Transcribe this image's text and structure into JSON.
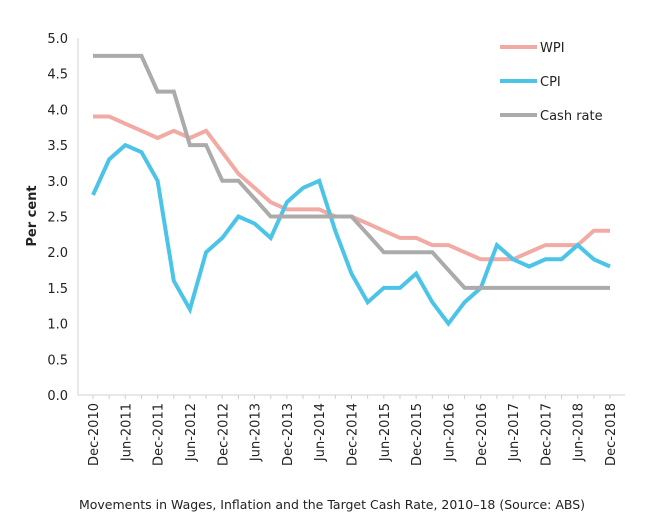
{
  "caption": "Movements in Wages, Inflation and the Target Cash Rate, 2010–18 (Source: ABS)",
  "chart_data": {
    "type": "line",
    "ylabel": "Per cent",
    "xlabel": "",
    "ylim": [
      0,
      5
    ],
    "yticks": [
      "0.0",
      "0.5",
      "1.0",
      "1.5",
      "2.0",
      "2.5",
      "3.0",
      "3.5",
      "4.0",
      "4.5",
      "5.0"
    ],
    "grid": false,
    "legend_position": "top-right",
    "x": [
      "Dec-2010",
      "Mar-2011",
      "Jun-2011",
      "Sep-2011",
      "Dec-2011",
      "Mar-2012",
      "Jun-2012",
      "Sep-2012",
      "Dec-2012",
      "Mar-2013",
      "Jun-2013",
      "Sep-2013",
      "Dec-2013",
      "Mar-2014",
      "Jun-2014",
      "Sep-2014",
      "Dec-2014",
      "Mar-2015",
      "Jun-2015",
      "Sep-2015",
      "Dec-2015",
      "Mar-2016",
      "Jun-2016",
      "Sep-2016",
      "Dec-2016",
      "Mar-2017",
      "Jun-2017",
      "Sep-2017",
      "Dec-2017",
      "Mar-2018",
      "Jun-2018",
      "Sep-2018",
      "Dec-2018"
    ],
    "xticks": [
      "Dec-2010",
      "Jun-2011",
      "Dec-2011",
      "Jun-2012",
      "Dec-2012",
      "Jun-2013",
      "Dec-2013",
      "Jun-2014",
      "Dec-2014",
      "Jun-2015",
      "Dec-2015",
      "Jun-2016",
      "Dec-2016",
      "Jun-2017",
      "Dec-2017",
      "Jun-2018",
      "Dec-2018"
    ],
    "series": [
      {
        "name": "WPI",
        "color": "#f2aaa5",
        "values": [
          3.9,
          3.9,
          3.8,
          3.7,
          3.6,
          3.7,
          3.6,
          3.7,
          3.4,
          3.1,
          2.9,
          2.7,
          2.6,
          2.6,
          2.6,
          2.5,
          2.5,
          2.4,
          2.3,
          2.2,
          2.2,
          2.1,
          2.1,
          2.0,
          1.9,
          1.9,
          1.9,
          2.0,
          2.1,
          2.1,
          2.1,
          2.3,
          2.3
        ]
      },
      {
        "name": "CPI",
        "color": "#4cc4e8",
        "values": [
          2.8,
          3.3,
          3.5,
          3.4,
          3.0,
          1.6,
          1.2,
          2.0,
          2.2,
          2.5,
          2.4,
          2.2,
          2.7,
          2.9,
          3.0,
          2.3,
          1.7,
          1.3,
          1.5,
          1.5,
          1.7,
          1.3,
          1.0,
          1.3,
          1.5,
          2.1,
          1.9,
          1.8,
          1.9,
          1.9,
          2.1,
          1.9,
          1.8
        ]
      },
      {
        "name": "Cash rate",
        "color": "#ababab",
        "values": [
          4.75,
          4.75,
          4.75,
          4.75,
          4.25,
          4.25,
          3.5,
          3.5,
          3.0,
          3.0,
          2.75,
          2.5,
          2.5,
          2.5,
          2.5,
          2.5,
          2.5,
          2.25,
          2.0,
          2.0,
          2.0,
          2.0,
          1.75,
          1.5,
          1.5,
          1.5,
          1.5,
          1.5,
          1.5,
          1.5,
          1.5,
          1.5,
          1.5
        ]
      }
    ]
  }
}
